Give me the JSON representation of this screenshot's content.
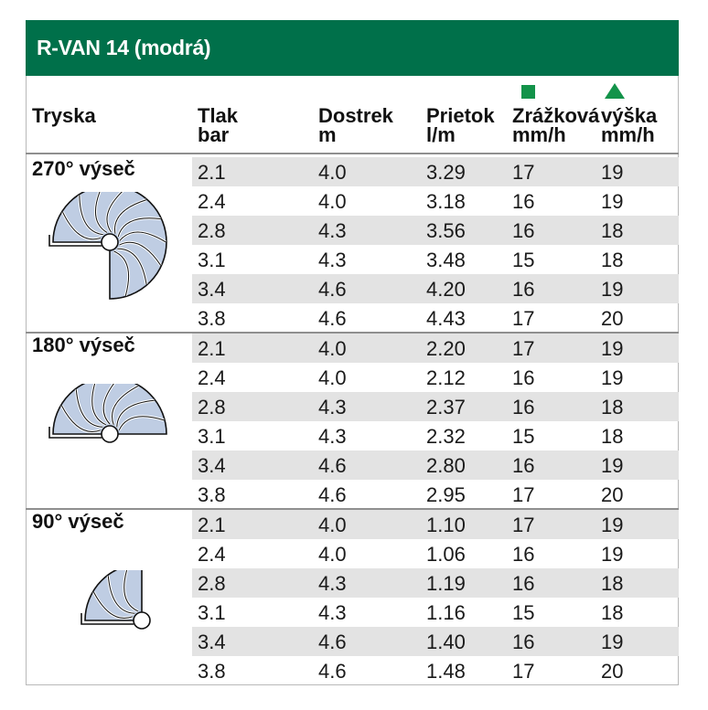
{
  "title": "R-VAN 14 (modrá)",
  "colors": {
    "header_bg": "#00704a",
    "legend_green": "#13934a",
    "row_band": "#e3e3e3",
    "nozzle_fill": "#bfcde3"
  },
  "legend": {
    "square": "green-square-icon",
    "triangle": "green-triangle-icon"
  },
  "headers": [
    {
      "line1": "Tryska",
      "line2": ""
    },
    {
      "line1": "Tlak",
      "line2": "bar"
    },
    {
      "line1": "Dostrek",
      "line2": "m"
    },
    {
      "line1": "Prietok",
      "line2": "l/m"
    },
    {
      "line1": "Zrážková",
      "line2": "mm/h"
    },
    {
      "line1": "výška",
      "line2": "mm/h"
    }
  ],
  "sections": [
    {
      "title": "270° výseč",
      "icon": "nozzle-270-icon",
      "rows": [
        [
          "2.1",
          "4.0",
          "3.29",
          "17",
          "19"
        ],
        [
          "2.4",
          "4.0",
          "3.18",
          "16",
          "19"
        ],
        [
          "2.8",
          "4.3",
          "3.56",
          "16",
          "18"
        ],
        [
          "3.1",
          "4.3",
          "3.48",
          "15",
          "18"
        ],
        [
          "3.4",
          "4.6",
          "4.20",
          "16",
          "19"
        ],
        [
          "3.8",
          "4.6",
          "4.43",
          "17",
          "20"
        ]
      ]
    },
    {
      "title": "180° výseč",
      "icon": "nozzle-180-icon",
      "rows": [
        [
          "2.1",
          "4.0",
          "2.20",
          "17",
          "19"
        ],
        [
          "2.4",
          "4.0",
          "2.12",
          "16",
          "19"
        ],
        [
          "2.8",
          "4.3",
          "2.37",
          "16",
          "18"
        ],
        [
          "3.1",
          "4.3",
          "2.32",
          "15",
          "18"
        ],
        [
          "3.4",
          "4.6",
          "2.80",
          "16",
          "19"
        ],
        [
          "3.8",
          "4.6",
          "2.95",
          "17",
          "20"
        ]
      ]
    },
    {
      "title": "90° výseč",
      "icon": "nozzle-90-icon",
      "rows": [
        [
          "2.1",
          "4.0",
          "1.10",
          "17",
          "19"
        ],
        [
          "2.4",
          "4.0",
          "1.06",
          "16",
          "19"
        ],
        [
          "2.8",
          "4.3",
          "1.19",
          "16",
          "18"
        ],
        [
          "3.1",
          "4.3",
          "1.16",
          "15",
          "18"
        ],
        [
          "3.4",
          "4.6",
          "1.40",
          "16",
          "19"
        ],
        [
          "3.8",
          "4.6",
          "1.48",
          "17",
          "20"
        ]
      ]
    }
  ]
}
